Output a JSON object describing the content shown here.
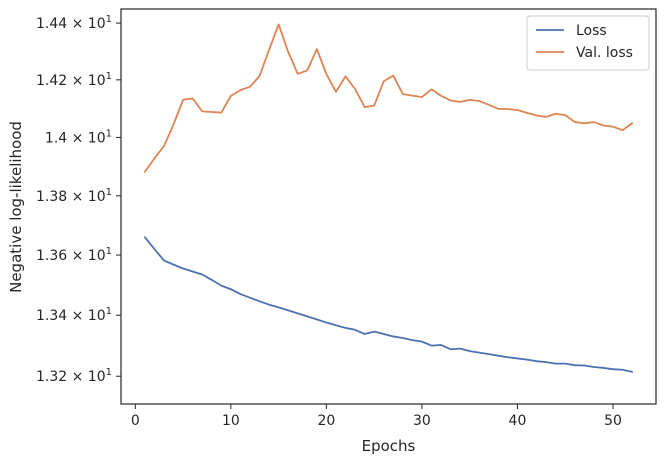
{
  "chart_data": {
    "type": "line",
    "xlabel": "Epochs",
    "ylabel": "Negative log-likelihood",
    "xlim": [
      -1.5,
      54.5
    ],
    "ylim": [
      13.11,
      14.45
    ],
    "yscale": "log",
    "x_ticks": [
      0,
      10,
      20,
      30,
      40,
      50
    ],
    "x_tick_labels": [
      "0",
      "10",
      "20",
      "30",
      "40",
      "50"
    ],
    "y_ticks": [
      13.2,
      13.4,
      13.6,
      13.8,
      14.0,
      14.2,
      14.4
    ],
    "y_tick_labels": [
      {
        "mantissa": "1.32",
        "times": "×",
        "base": "10",
        "exp": "1"
      },
      {
        "mantissa": "1.34",
        "times": "×",
        "base": "10",
        "exp": "1"
      },
      {
        "mantissa": "1.36",
        "times": "×",
        "base": "10",
        "exp": "1"
      },
      {
        "mantissa": "1.38",
        "times": "×",
        "base": "10",
        "exp": "1"
      },
      {
        "mantissa": "1.4",
        "times": "×",
        "base": "10",
        "exp": "1"
      },
      {
        "mantissa": "1.42",
        "times": "×",
        "base": "10",
        "exp": "1"
      },
      {
        "mantissa": "1.44",
        "times": "×",
        "base": "10",
        "exp": "1"
      }
    ],
    "grid": false,
    "legend_position": "top-right",
    "x": [
      1,
      2,
      3,
      4,
      5,
      6,
      7,
      8,
      9,
      10,
      11,
      12,
      13,
      14,
      15,
      16,
      17,
      18,
      19,
      20,
      21,
      22,
      23,
      24,
      25,
      26,
      27,
      28,
      29,
      30,
      31,
      32,
      33,
      34,
      35,
      36,
      37,
      38,
      39,
      40,
      41,
      42,
      43,
      44,
      45,
      46,
      47,
      48,
      49,
      50,
      51,
      52
    ],
    "series": [
      {
        "name": "Loss",
        "color": "#4c72b0",
        "values": [
          13.66,
          13.62,
          13.582,
          13.568,
          13.555,
          13.545,
          13.535,
          13.517,
          13.498,
          13.486,
          13.47,
          13.458,
          13.446,
          13.435,
          13.426,
          13.416,
          13.406,
          13.396,
          13.386,
          13.376,
          13.367,
          13.358,
          13.352,
          13.338,
          13.346,
          13.338,
          13.33,
          13.325,
          13.318,
          13.313,
          13.3,
          13.302,
          13.288,
          13.29,
          13.282,
          13.277,
          13.272,
          13.267,
          13.262,
          13.258,
          13.254,
          13.249,
          13.246,
          13.241,
          13.241,
          13.236,
          13.235,
          13.23,
          13.227,
          13.223,
          13.221,
          13.214
        ]
      },
      {
        "name": "Val. loss",
        "color": "#dd8452",
        "values": [
          13.882,
          13.928,
          13.97,
          14.045,
          14.131,
          14.135,
          14.09,
          14.088,
          14.086,
          14.144,
          14.164,
          14.176,
          14.213,
          14.305,
          14.395,
          14.298,
          14.221,
          14.233,
          14.308,
          14.22,
          14.158,
          14.212,
          14.168,
          14.105,
          14.11,
          14.195,
          14.215,
          14.15,
          14.145,
          14.14,
          14.167,
          14.144,
          14.128,
          14.123,
          14.13,
          14.126,
          14.113,
          14.099,
          14.098,
          14.095,
          14.085,
          14.076,
          14.071,
          14.082,
          14.077,
          14.053,
          14.049,
          14.053,
          14.041,
          14.037,
          14.025,
          14.049
        ]
      }
    ]
  }
}
